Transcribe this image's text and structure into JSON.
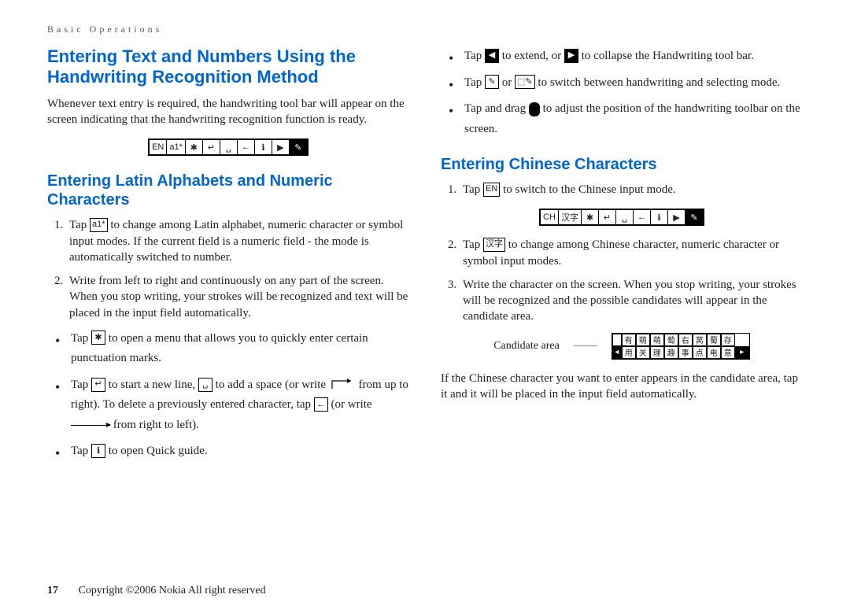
{
  "header": {
    "crumb": "Basic Operations"
  },
  "colors": {
    "heading": "#0066cc",
    "text": "#222222",
    "bg": "#ffffff"
  },
  "left": {
    "h1": "Entering Text and Numbers Using the Handwriting Recognition Method",
    "intro": "Whenever text entry is required, the handwriting tool bar will appear on the screen indicating that the handwriting recognition function is ready.",
    "toolbar_en": {
      "cells": [
        "EN",
        "a1*",
        "✱",
        "↵",
        "␣",
        "←",
        "ℹ",
        "▶",
        "✎"
      ],
      "black_last": true
    },
    "h2_latin": "Entering Latin Alphabets and Numeric Characters",
    "ol": [
      {
        "pre": "Tap ",
        "icon": "a1*",
        "post": " to change among Latin alphabet, numeric character or symbol input modes. If the current field is a numeric field - the mode is automatically switched to number."
      },
      {
        "text": "Write from left to right and continuously on any part of the screen. When you stop writing, your strokes will be recognized and text will be placed in the input field automatically."
      }
    ],
    "ul": [
      {
        "pre": "Tap ",
        "icon": "✱",
        "post": " to open a menu that allows you to quickly enter certain punctuation marks."
      },
      {
        "pre": "Tap ",
        "icon": "↵",
        "mid1": " to start a new line, ",
        "icon2": "␣",
        "mid2": " to add a space (or write ",
        "gesture": "up-right",
        "mid3": " from up to right). To delete a previously entered character, tap ",
        "icon3": "←",
        "mid4": " (or write ",
        "gesture2": "right",
        "post": " from right to left)."
      },
      {
        "pre": "Tap ",
        "icon": "ℹ",
        "post": " to open Quick guide."
      }
    ]
  },
  "right": {
    "ul_top": [
      {
        "pre": "Tap ",
        "icon": "◀",
        "black": true,
        "mid1": " to extend, or ",
        "icon2": "▶",
        "black2": true,
        "post": " to collapse the Handwriting tool bar."
      },
      {
        "pre": "Tap ",
        "icon": "✎",
        "mid1": " or ",
        "icon2": "⬚✎",
        "post": " to switch between handwriting and selecting mode."
      },
      {
        "pre": "Tap and drag ",
        "dragdot": true,
        "post": " to adjust the position of the handwriting toolbar on the screen."
      }
    ],
    "h2_chinese": "Entering Chinese Characters",
    "ol": [
      {
        "pre": "Tap ",
        "icon": "EN",
        "post": " to switch to the Chinese input mode."
      }
    ],
    "toolbar_ch": {
      "cells": [
        "CH",
        "汉字",
        "✱",
        "↵",
        "␣",
        "←",
        "ℹ",
        "▶",
        "✎"
      ],
      "black_last": true
    },
    "ol2": [
      {
        "n": 2,
        "pre": "Tap ",
        "icon": "汉字",
        "post": " to change among Chinese character, numeric character or symbol input modes."
      },
      {
        "n": 3,
        "text": "Write the character on the screen. When you stop writing, your strokes will be recognized and the possible candidates will appear in the candidate area."
      }
    ],
    "candidate": {
      "label": "Candidate area",
      "row1": [
        "有",
        "萌",
        "萌",
        "萄",
        "右",
        "莴",
        "蜀",
        "存"
      ],
      "row2": [
        "用",
        "关",
        "理",
        "趣",
        "事",
        "点",
        "电",
        "意"
      ]
    },
    "after_candidate": "If the Chinese character you want to enter appears in the candidate area, tap it and it will be placed in the input field automatically."
  },
  "footer": {
    "page": "17",
    "copyright": "Copyright ©2006 Nokia All right reserved"
  }
}
